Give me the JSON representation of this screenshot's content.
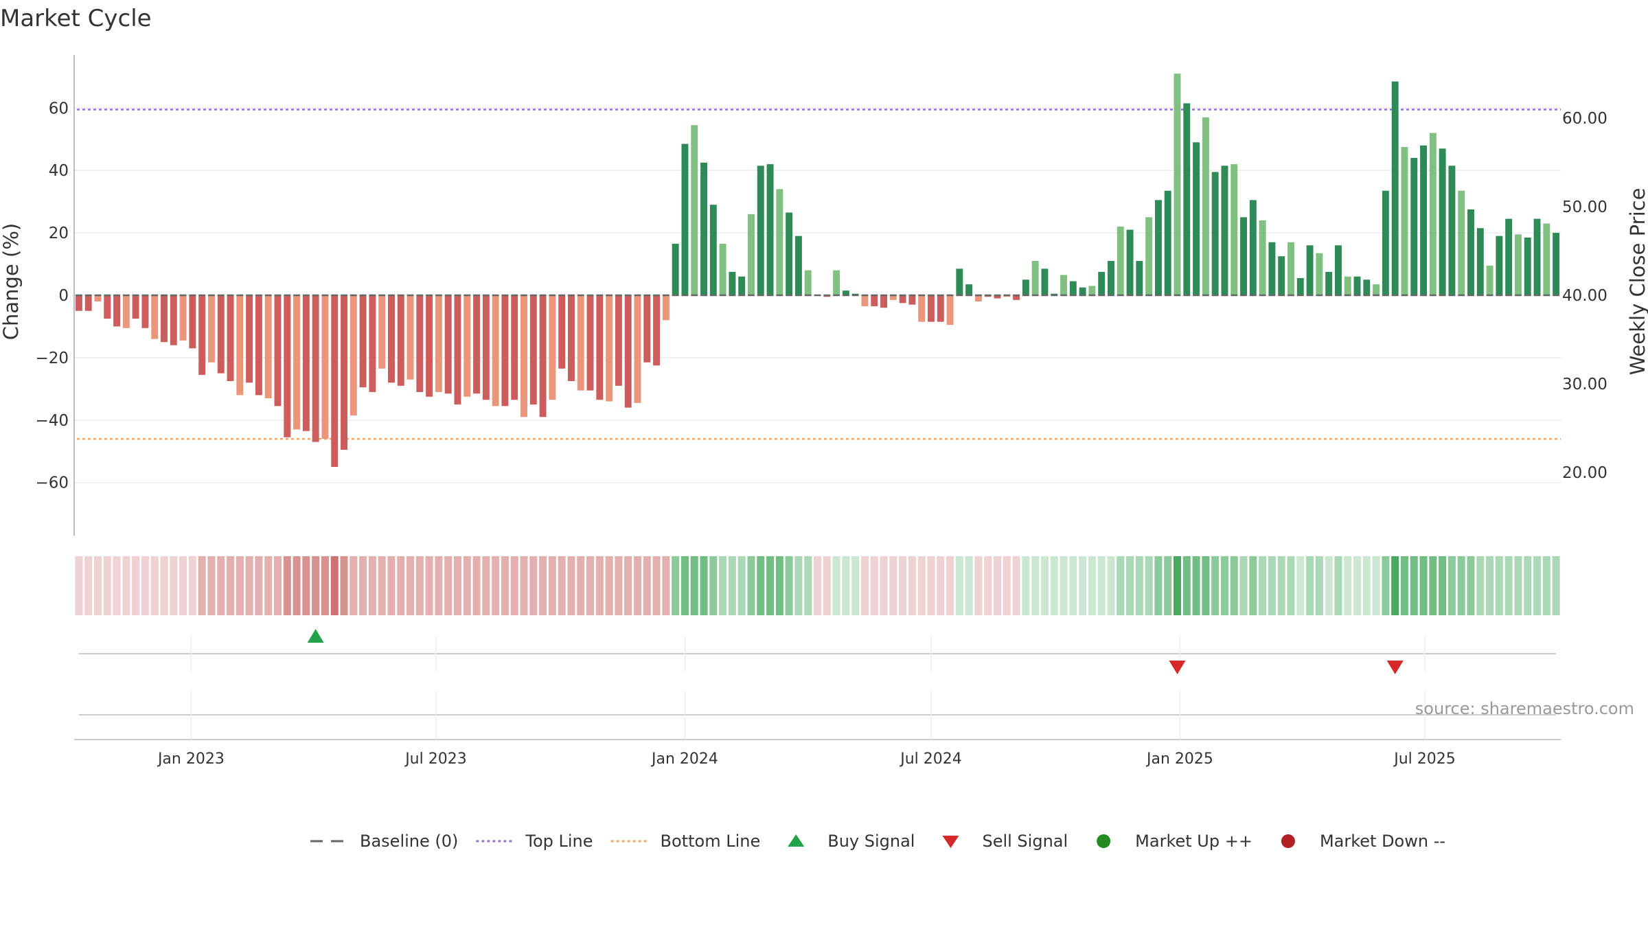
{
  "title": "Market Cycle",
  "source": "source: sharemaestro.com",
  "colors": {
    "neg_dark": "#cd5c5c",
    "neg_light": "#e9967a",
    "pos_dark": "#2e8b57",
    "pos_light": "#80c080",
    "top_line": "#9370db",
    "bottom_line": "#f4a460",
    "baseline": "#666666",
    "buy": "#22a34a",
    "sell": "#d62828",
    "market_up": "#228b22",
    "market_down": "#b22222"
  },
  "legend": [
    {
      "label": "Baseline (0)",
      "kind": "dash",
      "color": "#666666"
    },
    {
      "label": "Top Line",
      "kind": "dot",
      "color": "#9370db"
    },
    {
      "label": "Bottom Line",
      "kind": "dot",
      "color": "#f4a460"
    },
    {
      "label": "Buy Signal",
      "kind": "tri-up",
      "color": "#22a34a"
    },
    {
      "label": "Sell Signal",
      "kind": "tri-down",
      "color": "#d62828"
    },
    {
      "label": "Market Up ++",
      "kind": "circle",
      "color": "#228b22"
    },
    {
      "label": "Market Down --",
      "kind": "circle",
      "color": "#b22222"
    }
  ],
  "chart_data": {
    "type": "bar",
    "title": "Market Cycle",
    "ylabel": "Change (%)",
    "y2label": "Weekly Close Price",
    "ylim": [
      -77,
      77
    ],
    "y2lim": [
      15,
      70
    ],
    "yticks": [
      60,
      40,
      20,
      0,
      -20,
      -40,
      -60
    ],
    "ytick_labels": [
      "60",
      "40",
      "20",
      "0",
      "−20",
      "−40",
      "−60"
    ],
    "y2ticks": [
      60,
      50,
      40,
      30,
      20
    ],
    "y2tick_labels": [
      "60.00",
      "50.00",
      "40.00",
      "30.00",
      "20.00"
    ],
    "top_line": 59.5,
    "bottom_line": -46,
    "x_start": "2022-10-10",
    "week_step_days": 7,
    "xtick_labels": [
      "Jan 2023",
      "Jul 2023",
      "Jan 2024",
      "Jul 2024",
      "Jan 2025",
      "Jul 2025"
    ],
    "xtick_dates": [
      "2023-01-01",
      "2023-07-01",
      "2024-01-01",
      "2024-07-01",
      "2025-01-01",
      "2025-07-01"
    ],
    "values": [
      -5,
      -5,
      -2,
      -7.5,
      -10,
      -10.5,
      -7.5,
      -10.5,
      -14,
      -15,
      -16,
      -14.5,
      -17,
      -25.5,
      -21.5,
      -25,
      -27.5,
      -32,
      -28,
      -32,
      -33,
      -35.5,
      -45.5,
      -43,
      -43.5,
      -47,
      -46,
      -55,
      -49.5,
      -38.5,
      -29.5,
      -31,
      -23.5,
      -28,
      -29,
      -27,
      -31,
      -32.5,
      -31,
      -31.5,
      -35,
      -32.5,
      -31.5,
      -33.5,
      -35.5,
      -35.5,
      -33.5,
      -39,
      -35,
      -39,
      -33.5,
      -23.5,
      -27.5,
      -30.5,
      -30.5,
      -33.5,
      -34,
      -29,
      -36,
      -34.5,
      -21.5,
      -22.5,
      -8,
      16.5,
      48.5,
      54.5,
      42.5,
      29,
      16.5,
      7.5,
      6,
      26,
      41.5,
      42,
      34,
      26.5,
      19,
      8,
      0,
      -0.5,
      8,
      1.5,
      0.5,
      -3.5,
      -3.5,
      -4,
      -1.5,
      -2.5,
      -3,
      -8.5,
      -8.5,
      -8.5,
      -9.5,
      8.5,
      3.5,
      -2,
      -0.5,
      -1,
      -0.5,
      -1.5,
      5,
      11,
      8.5,
      0.5,
      6.5,
      4.5,
      2.5,
      3,
      7.5,
      11,
      22,
      21,
      11,
      25,
      30.5,
      33.5,
      71,
      61.5,
      49,
      57,
      39.5,
      41.5,
      42,
      25,
      30.5,
      24,
      17,
      12.5,
      17,
      5.5,
      16,
      13.5,
      7.5,
      16,
      6,
      6,
      5,
      3.5,
      33.5,
      68.5,
      47.5,
      44,
      48,
      52,
      47,
      41.5,
      33.5,
      27.5,
      21.5,
      9.5,
      19,
      24.5,
      19.5,
      18.5,
      24.5,
      23,
      20
    ],
    "band_levels": [
      -1,
      -1,
      -1,
      -1,
      -1,
      -1,
      -1,
      -1,
      -1,
      -1,
      -1,
      -1,
      -1,
      -2,
      -2,
      -2,
      -2,
      -2,
      -2,
      -2,
      -2,
      -2,
      -3,
      -3,
      -3,
      -3,
      -3,
      -4,
      -3,
      -2,
      -2,
      -2,
      -2,
      -2,
      -2,
      -2,
      -2,
      -2,
      -2,
      -2,
      -2,
      -2,
      -2,
      -2,
      -2,
      -2,
      -2,
      -2,
      -2,
      -2,
      -2,
      -2,
      -2,
      -2,
      -2,
      -2,
      -2,
      -2,
      -2,
      -2,
      -2,
      -2,
      -2,
      3,
      4,
      4,
      4,
      3,
      2,
      2,
      2,
      3,
      4,
      4,
      4,
      3,
      2,
      2,
      -1,
      -1,
      1,
      1,
      1,
      -1,
      -1,
      -1,
      -1,
      -1,
      -1,
      -1,
      -1,
      -1,
      -1,
      1,
      1,
      -1,
      -1,
      -1,
      -1,
      -1,
      1,
      1,
      1,
      1,
      1,
      1,
      1,
      1,
      1,
      1,
      2,
      2,
      2,
      2,
      3,
      3,
      5,
      4,
      4,
      4,
      3,
      3,
      3,
      2,
      3,
      2,
      2,
      2,
      2,
      1,
      2,
      2,
      1,
      2,
      1,
      1,
      1,
      1,
      3,
      5,
      4,
      4,
      4,
      4,
      4,
      3,
      3,
      3,
      2,
      2,
      2,
      2,
      2,
      2,
      2,
      2,
      2
    ],
    "buy_signals": [
      {
        "index": 25,
        "level": 1
      }
    ],
    "sell_signals": [
      {
        "index": 116,
        "level": 1
      },
      {
        "index": 139,
        "level": 1
      }
    ]
  }
}
